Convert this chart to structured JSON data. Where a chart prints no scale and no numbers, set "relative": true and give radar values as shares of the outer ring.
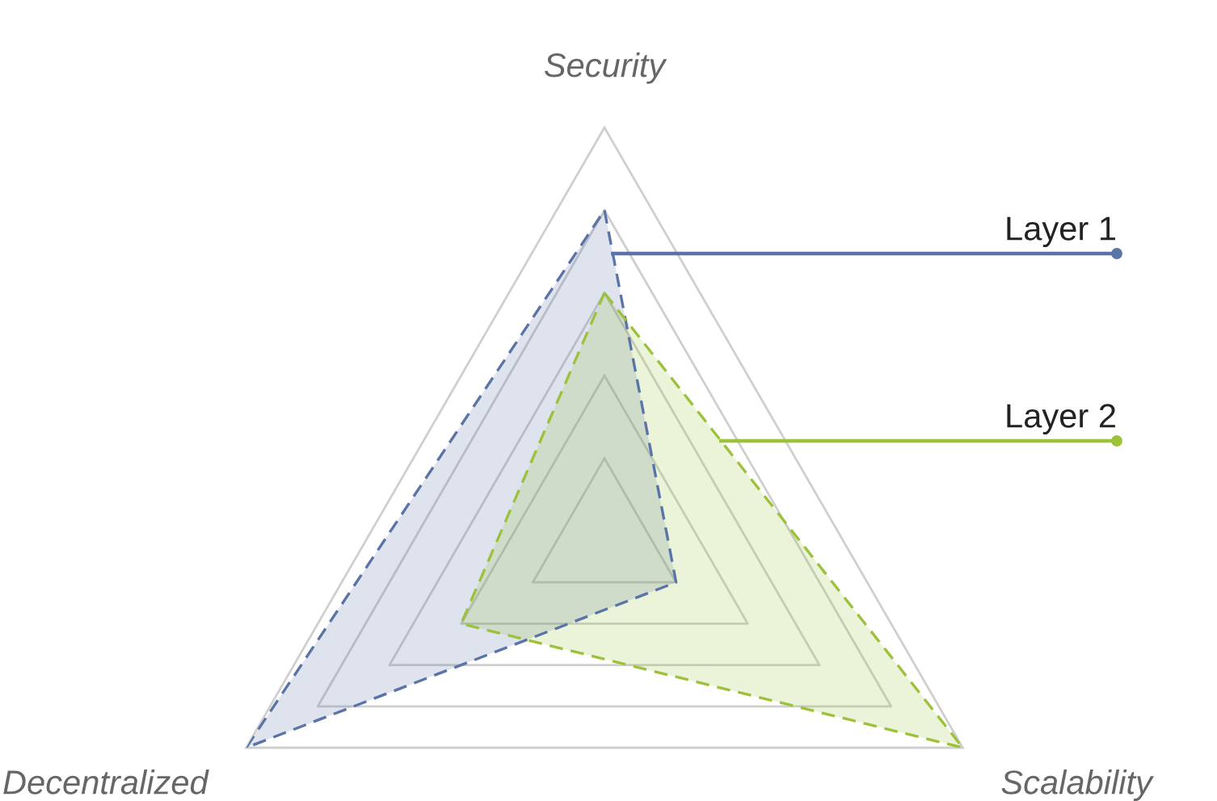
{
  "chart_data": {
    "type": "radar",
    "categories": [
      "Security",
      "Scalability",
      "Decentralized"
    ],
    "relative": true,
    "series": [
      {
        "name": "Layer 1",
        "color": "#5a74a8",
        "values": [
          0.8,
          0.2,
          1.0
        ]
      },
      {
        "name": "Layer 2",
        "color": "#9cc23c",
        "values": [
          0.6,
          1.0,
          0.4
        ]
      }
    ],
    "line_style": "dashed",
    "legend": "right",
    "grid": true
  }
}
